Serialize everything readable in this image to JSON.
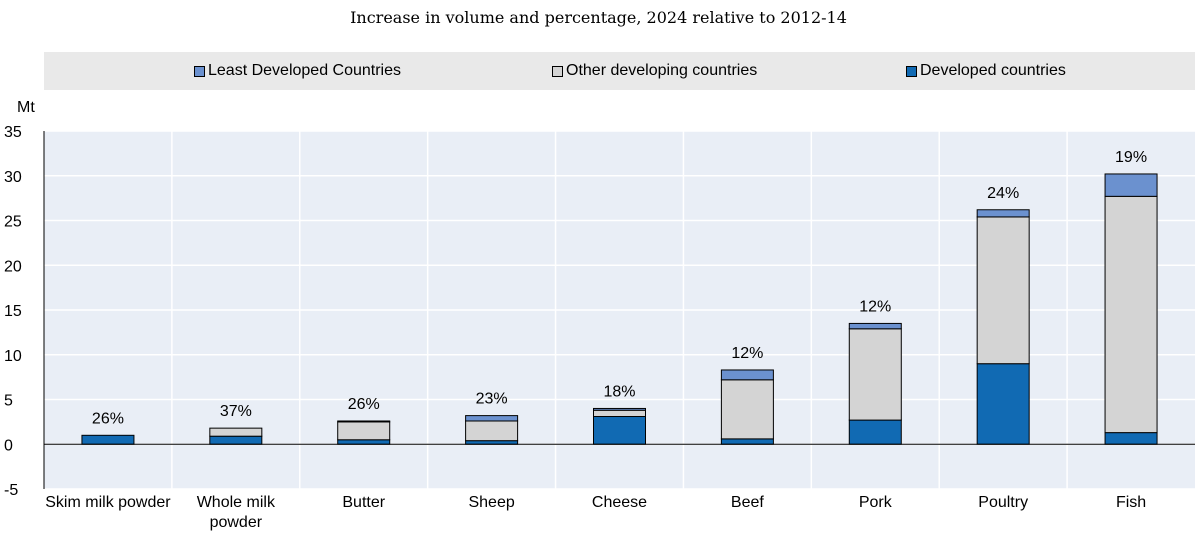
{
  "subtitle": "Increase in volume and percentage, 2024 relative to 2012-14",
  "colors": {
    "least_developed": "#6b91cf",
    "other_developing": "#d4d4d4",
    "developed": "#116ab3",
    "plot_background": "#e9eef6",
    "legend_background": "#e9e9e9"
  },
  "legend": [
    {
      "label": "Least Developed Countries",
      "color": "#6b91cf"
    },
    {
      "label": "Other developing countries",
      "color": "#d4d4d4"
    },
    {
      "label": "Developed countries",
      "color": "#116ab3"
    }
  ],
  "chart_data": {
    "type": "bar",
    "stacked": true,
    "title": "",
    "subtitle": "Increase in volume and percentage, 2024 relative to 2012-14",
    "ylabel": "Mt",
    "xlabel": "",
    "ylim": [
      -5,
      35
    ],
    "yticks": [
      -5,
      0,
      5,
      10,
      15,
      20,
      25,
      30,
      35
    ],
    "grid": "horizontal and vertical",
    "legend_position": "top",
    "categories": [
      "Skim milk powder",
      "Whole milk powder",
      "Butter",
      "Sheep",
      "Cheese",
      "Beef",
      "Pork",
      "Poultry",
      "Fish"
    ],
    "series": [
      {
        "name": "Developed countries",
        "color": "#116ab3",
        "values": [
          1.0,
          0.9,
          0.5,
          0.4,
          3.1,
          0.6,
          2.7,
          9.0,
          1.3
        ]
      },
      {
        "name": "Other developing countries",
        "color": "#d4d4d4",
        "values": [
          0.0,
          0.9,
          2.0,
          2.2,
          0.7,
          6.6,
          10.2,
          16.4,
          26.4
        ]
      },
      {
        "name": "Least Developed Countries",
        "color": "#6b91cf",
        "values": [
          0.0,
          0.0,
          0.1,
          0.6,
          0.2,
          1.1,
          0.6,
          0.8,
          2.5
        ]
      }
    ],
    "percent_labels": [
      "26%",
      "37%",
      "26%",
      "23%",
      "18%",
      "12%",
      "12%",
      "24%",
      "19%"
    ]
  }
}
